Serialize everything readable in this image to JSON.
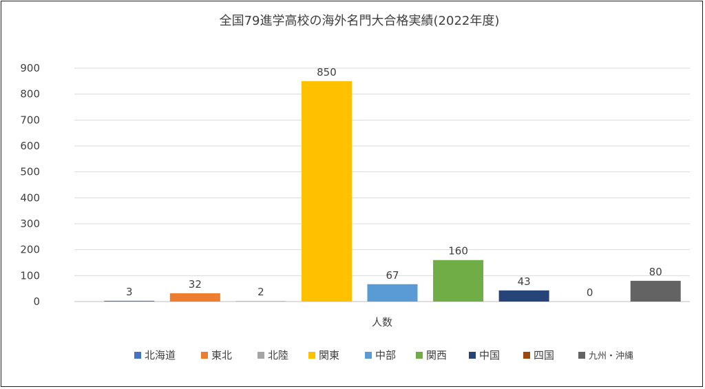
{
  "chart_data": {
    "type": "bar",
    "title": "全国79進学高校の海外名門大合格実績(2022年度)",
    "xlabel": "人数",
    "ylabel": "",
    "ylim": [
      0,
      900
    ],
    "yticks": [
      0,
      100,
      200,
      300,
      400,
      500,
      600,
      700,
      800,
      900
    ],
    "grid": true,
    "legend_position": "bottom",
    "categories": [
      "人数"
    ],
    "series": [
      {
        "name": "北海道",
        "values": [
          3
        ],
        "color": "#4472C4"
      },
      {
        "name": "東北",
        "values": [
          32
        ],
        "color": "#ED7D31"
      },
      {
        "name": "北陸",
        "values": [
          2
        ],
        "color": "#A5A5A5"
      },
      {
        "name": "関東",
        "values": [
          850
        ],
        "color": "#FFC000"
      },
      {
        "name": "中部",
        "values": [
          67
        ],
        "color": "#5B9BD5"
      },
      {
        "name": "関西",
        "values": [
          160
        ],
        "color": "#70AD47"
      },
      {
        "name": "中国",
        "values": [
          43
        ],
        "color": "#264478"
      },
      {
        "name": "四国",
        "values": [
          0
        ],
        "color": "#9E480E"
      },
      {
        "name": "九州・沖縄",
        "values": [
          80
        ],
        "color": "#636363"
      }
    ],
    "data_labels": [
      "3",
      "32",
      "2",
      "850",
      "67",
      "160",
      "43",
      "0",
      "80"
    ]
  }
}
